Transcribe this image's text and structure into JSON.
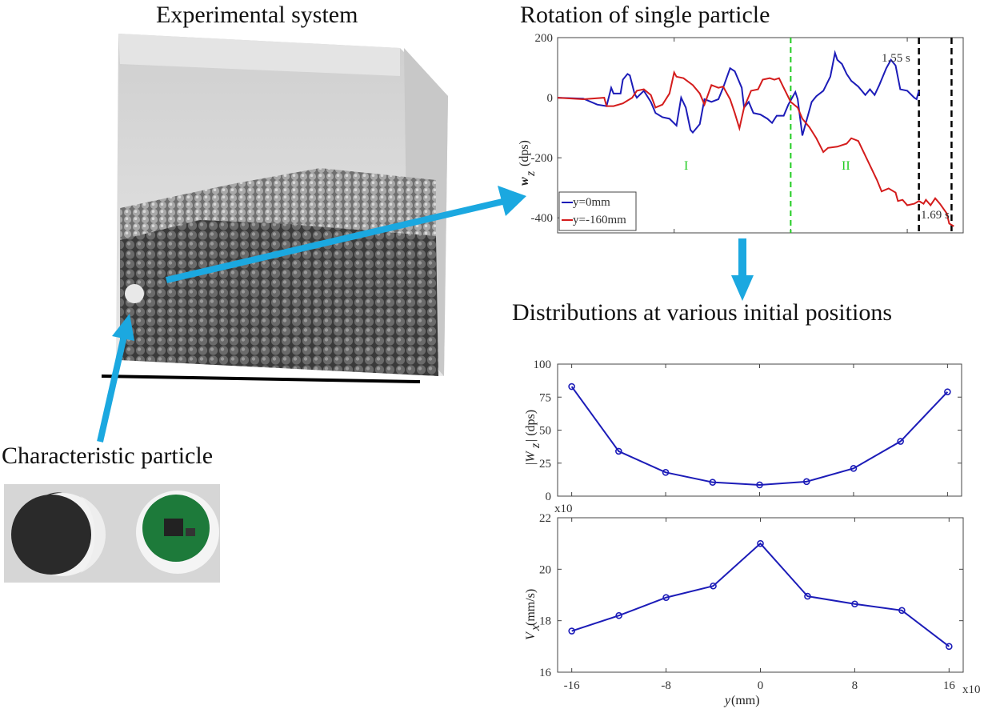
{
  "titles": {
    "experimental": "Experimental system",
    "rotation": "Rotation of single particle",
    "distributions": "Distributions at various initial positions",
    "particle": "Characteristic particle"
  },
  "colors": {
    "arrow": "#1ba8e0",
    "series_blue": "#1c1cb8",
    "series_red": "#d41c1c",
    "phase_line": "#22cc22",
    "marker_line": "#000000"
  },
  "chart_data": [
    {
      "type": "line",
      "ylabel": "w_z (dps)",
      "ylabel_main": "w",
      "ylabel_sub": "z",
      "ylabel_unit": "(dps)",
      "xlim": [
        0,
        1.74
      ],
      "ylim": [
        -450,
        200
      ],
      "yticks": [
        "200",
        "0",
        "-200",
        "-400"
      ],
      "ytick_values": [
        200,
        0,
        -200,
        -400
      ],
      "xtick_values": [
        0.5,
        1.0,
        1.5
      ],
      "annotations": {
        "phase1": "I",
        "phase2": "II",
        "t1": "1.55 s",
        "t2": "1.69 s"
      },
      "phase_boundary_x": 1.0,
      "marker_lines_x": [
        1.55,
        1.69
      ],
      "legend_placement": "bottom-left",
      "series": [
        {
          "name": "y=0mm",
          "color": "#1c1cb8",
          "x": [
            0,
            0.11,
            0.17,
            0.21,
            0.23,
            0.24,
            0.27,
            0.28,
            0.3,
            0.31,
            0.33,
            0.34,
            0.37,
            0.4,
            0.42,
            0.45,
            0.48,
            0.51,
            0.53,
            0.55,
            0.57,
            0.58,
            0.61,
            0.63,
            0.66,
            0.69,
            0.71,
            0.74,
            0.76,
            0.79,
            0.8,
            0.82,
            0.84,
            0.87,
            0.9,
            0.92,
            0.94,
            0.97,
            0.99,
            1.01,
            1.02,
            1.03,
            1.05,
            1.07,
            1.09,
            1.11,
            1.14,
            1.17,
            1.19,
            1.2,
            1.22,
            1.24,
            1.26,
            1.29,
            1.32,
            1.34,
            1.36,
            1.38,
            1.41,
            1.43,
            1.45,
            1.47,
            1.5,
            1.53,
            1.54,
            1.55
          ],
          "y": [
            0,
            -3,
            -23,
            -28,
            33,
            14,
            14,
            60,
            79,
            74,
            14,
            0,
            23,
            -14,
            -51,
            -65,
            -70,
            -93,
            0,
            -33,
            -107,
            -116,
            -88,
            -5,
            -14,
            -5,
            33,
            98,
            88,
            33,
            -33,
            -14,
            -51,
            -56,
            -70,
            -84,
            -60,
            -60,
            -23,
            5,
            19,
            -5,
            -126,
            -70,
            -14,
            5,
            23,
            70,
            149,
            126,
            112,
            79,
            56,
            37,
            9,
            28,
            9,
            42,
            98,
            126,
            107,
            28,
            23,
            0,
            -5,
            23
          ]
        },
        {
          "name": "y=-160mm",
          "color": "#d41c1c",
          "x": [
            0,
            0.11,
            0.2,
            0.21,
            0.24,
            0.28,
            0.32,
            0.34,
            0.37,
            0.4,
            0.42,
            0.45,
            0.48,
            0.5,
            0.51,
            0.54,
            0.58,
            0.61,
            0.63,
            0.66,
            0.69,
            0.71,
            0.74,
            0.76,
            0.78,
            0.8,
            0.83,
            0.86,
            0.88,
            0.91,
            0.93,
            0.95,
            0.97,
            1.0,
            1.03,
            1.05,
            1.08,
            1.11,
            1.14,
            1.16,
            1.2,
            1.24,
            1.26,
            1.29,
            1.33,
            1.37,
            1.39,
            1.42,
            1.45,
            1.46,
            1.48,
            1.5,
            1.53,
            1.55,
            1.57,
            1.58,
            1.6,
            1.62,
            1.64,
            1.67,
            1.68,
            1.7
          ],
          "y": [
            0,
            -5,
            0,
            -28,
            -28,
            -19,
            0,
            23,
            28,
            9,
            -33,
            -23,
            14,
            84,
            70,
            65,
            42,
            14,
            -23,
            42,
            33,
            37,
            -5,
            -51,
            -102,
            -33,
            23,
            28,
            60,
            65,
            60,
            65,
            33,
            -14,
            -33,
            -70,
            -98,
            -135,
            -181,
            -167,
            -163,
            -153,
            -135,
            -144,
            -209,
            -274,
            -312,
            -302,
            -316,
            -344,
            -340,
            -358,
            -353,
            -344,
            -353,
            -340,
            -358,
            -335,
            -353,
            -386,
            -419,
            -428
          ]
        }
      ]
    },
    {
      "type": "line",
      "ylabel_main": "|W",
      "ylabel_sub": "z",
      "ylabel_unit": "| (dps)",
      "x": [
        -16,
        -12,
        -8,
        -4,
        0,
        4,
        8,
        12,
        16
      ],
      "y": [
        83,
        34,
        18,
        10.5,
        8.5,
        11,
        21,
        41.5,
        79
      ],
      "ylim": [
        0,
        100
      ],
      "yticks": [
        "100",
        "75",
        "50",
        "25",
        "0"
      ],
      "ytick_values": [
        100,
        75,
        50,
        25,
        0
      ],
      "xlim": [
        -17.2,
        17.2
      ],
      "color": "#1c1cb8"
    },
    {
      "type": "line",
      "ylabel_main": "V",
      "ylabel_sub": "x",
      "ylabel_unit": " (mm/s)",
      "xlabel_main": "y",
      "xlabel_unit": " (mm)",
      "x": [
        -16,
        -12,
        -8,
        -4,
        0,
        4,
        8,
        12,
        16
      ],
      "y": [
        17.6,
        18.2,
        18.9,
        19.35,
        21.0,
        18.95,
        18.65,
        18.4,
        17.0
      ],
      "ylim": [
        16,
        22
      ],
      "yticks": [
        "22",
        "20",
        "18",
        "16"
      ],
      "ytick_values": [
        22,
        20,
        18,
        16
      ],
      "xticks": [
        "-16",
        "-8",
        "0",
        "8",
        "16"
      ],
      "xtick_values": [
        -16,
        -8,
        0,
        8,
        16
      ],
      "xlim": [
        -17.2,
        17.2
      ],
      "multiplier_y": "x10",
      "multiplier_x": "x10",
      "color": "#1c1cb8"
    }
  ]
}
